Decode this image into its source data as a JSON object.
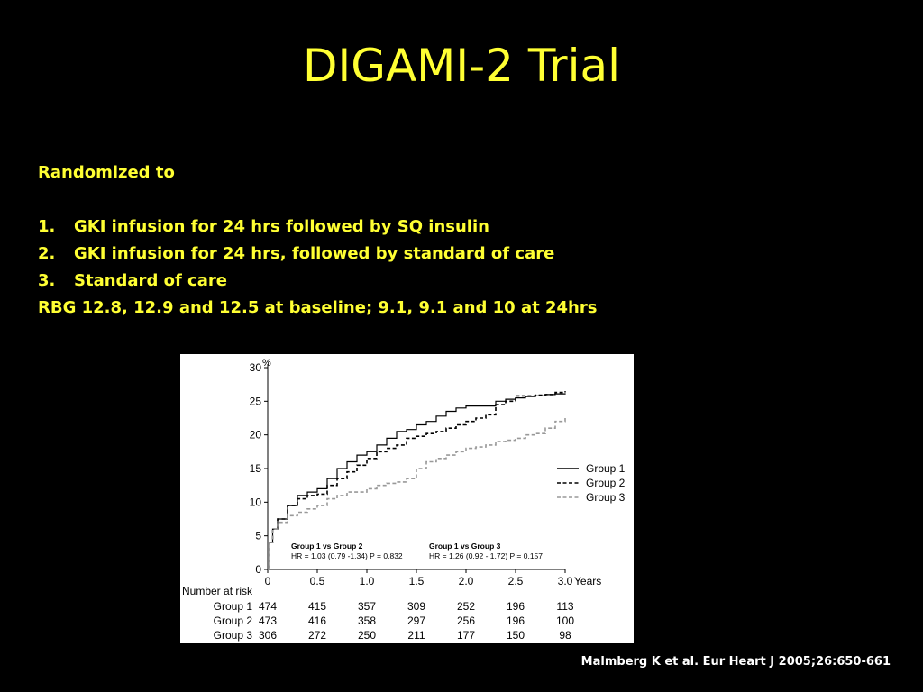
{
  "slide": {
    "title": "DIGAMI-2 Trial",
    "intro": "Randomized to",
    "items": [
      {
        "num": "1.",
        "text": "GKI infusion for 24 hrs followed by SQ insulin"
      },
      {
        "num": "2.",
        "text": "GKI infusion for 24 hrs, followed by standard of care"
      },
      {
        "num": "3.",
        "text": "Standard of care"
      }
    ],
    "note": "RBG 12.8, 12.9 and 12.5 at baseline; 9.1, 9.1 and 10 at 24hrs",
    "citation": "Malmberg K et al. Eur Heart J 2005;26:650-661"
  },
  "colors": {
    "background": "#000000",
    "title_text": "#ffff33",
    "body_text": "#ffff33",
    "citation_text": "#ffffff",
    "group1": "#000000",
    "group2": "#000000",
    "group3": "#999999"
  },
  "chart_data": {
    "type": "line",
    "title": "",
    "xlabel": "Years",
    "ylabel": "%",
    "xlim": [
      0,
      3.0
    ],
    "ylim": [
      0,
      30
    ],
    "x_ticks": [
      "0",
      "0.5",
      "1.0",
      "1.5",
      "2.0",
      "2.5",
      "3.0"
    ],
    "y_ticks": [
      "0",
      "5",
      "10",
      "15",
      "20",
      "25",
      "30"
    ],
    "grid": false,
    "legend_position": "right",
    "series": [
      {
        "name": "Group 1",
        "style": "solid",
        "color": "#000000",
        "x": [
          0,
          0.02,
          0.05,
          0.1,
          0.2,
          0.3,
          0.4,
          0.5,
          0.6,
          0.7,
          0.8,
          0.9,
          1.0,
          1.1,
          1.2,
          1.3,
          1.4,
          1.5,
          1.6,
          1.7,
          1.8,
          1.9,
          2.0,
          2.1,
          2.2,
          2.3,
          2.4,
          2.5,
          2.6,
          2.7,
          2.8,
          2.9,
          3.0
        ],
        "y": [
          0,
          4,
          6,
          7.5,
          9.5,
          11,
          11.5,
          12,
          13.5,
          15,
          16,
          17,
          17.5,
          18.5,
          19.5,
          20.5,
          20.8,
          21.5,
          22,
          22.8,
          23.5,
          24,
          24.3,
          24.3,
          24.3,
          25,
          25.3,
          25.5,
          25.7,
          25.8,
          26,
          26.1,
          26.2
        ]
      },
      {
        "name": "Group 2",
        "style": "dashed",
        "color": "#000000",
        "x": [
          0,
          0.02,
          0.05,
          0.1,
          0.2,
          0.3,
          0.4,
          0.5,
          0.6,
          0.7,
          0.8,
          0.9,
          1.0,
          1.1,
          1.2,
          1.3,
          1.4,
          1.5,
          1.6,
          1.7,
          1.8,
          1.9,
          2.0,
          2.1,
          2.2,
          2.3,
          2.4,
          2.5,
          2.6,
          2.7,
          2.8,
          2.9,
          3.0
        ],
        "y": [
          0,
          4,
          6,
          7.5,
          9.5,
          10.5,
          11,
          11.2,
          12.5,
          13.5,
          14.5,
          15.5,
          16.5,
          17.5,
          18,
          18.5,
          19.5,
          19.8,
          20.2,
          20.5,
          21,
          21.5,
          22,
          22.5,
          23,
          24.5,
          25,
          25.8,
          25.8,
          25.9,
          26,
          26.3,
          26.5
        ]
      },
      {
        "name": "Group 3",
        "style": "dashed",
        "color": "#999999",
        "x": [
          0,
          0.02,
          0.05,
          0.1,
          0.2,
          0.3,
          0.4,
          0.5,
          0.6,
          0.7,
          0.8,
          0.9,
          1.0,
          1.1,
          1.2,
          1.3,
          1.4,
          1.5,
          1.6,
          1.7,
          1.8,
          1.9,
          2.0,
          2.1,
          2.2,
          2.3,
          2.4,
          2.5,
          2.6,
          2.7,
          2.8,
          2.9,
          3.0
        ],
        "y": [
          0,
          4,
          6,
          7,
          8,
          8.5,
          9,
          9.5,
          10.5,
          11,
          11.5,
          11.5,
          12,
          12.5,
          12.8,
          13,
          13.5,
          15,
          16,
          16.5,
          17,
          17.5,
          18,
          18.2,
          18.5,
          19,
          19.2,
          19.5,
          20,
          20.2,
          21,
          22,
          22.5
        ]
      }
    ],
    "annotations": [
      {
        "heading": "Group 1 vs Group 2",
        "text": "HR = 1.03 (0.79 -1.34) P = 0.832"
      },
      {
        "heading": "Group 1 vs Group 3",
        "text": "HR = 1.26 (0.92 - 1.72) P = 0.157"
      }
    ],
    "risk_table": {
      "label": "Number at risk",
      "rows": [
        {
          "group": "Group 1",
          "values": [
            "474",
            "415",
            "357",
            "309",
            "252",
            "196",
            "113"
          ]
        },
        {
          "group": "Group 2",
          "values": [
            "473",
            "416",
            "358",
            "297",
            "256",
            "196",
            "100"
          ]
        },
        {
          "group": "Group 3",
          "values": [
            "306",
            "272",
            "250",
            "211",
            "177",
            "150",
            "98"
          ]
        }
      ]
    }
  }
}
